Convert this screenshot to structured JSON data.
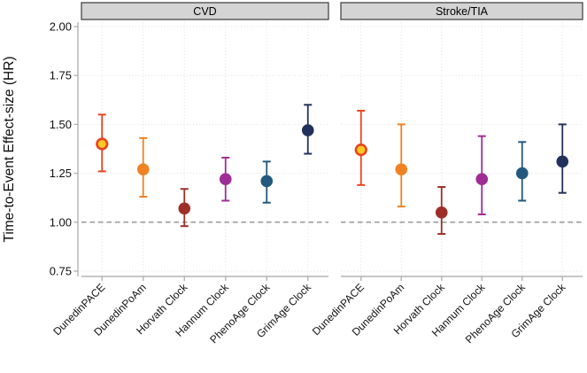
{
  "figure_title": "",
  "chart_data": {
    "type": "scatter",
    "subtype": "forest-plot-point-range",
    "ylabel": "Time-to-Event Effect-size (HR)",
    "xlabel": "",
    "ylim": [
      0.75,
      2.05
    ],
    "yticks": [
      2.0,
      1.75,
      1.5,
      1.25,
      1.0,
      0.75
    ],
    "ytick_labels": [
      "2.00",
      "1.75",
      "1.50",
      "1.25",
      "1.00",
      "0.75"
    ],
    "reference_line_y": 1.0,
    "grid": "dotted-both-axes",
    "legend_position": "none",
    "categories": [
      "DunedinPACE",
      "DunedinPoAm",
      "Horvath Clock",
      "Hannum Clock",
      "PhenoAge Clock",
      "GrimAge Clock"
    ],
    "panels": [
      {
        "label": "CVD",
        "series": [
          {
            "clock": "DunedinPACE",
            "hr": 1.4,
            "ci_low": 1.26,
            "ci_high": 1.55
          },
          {
            "clock": "DunedinPoAm",
            "hr": 1.27,
            "ci_low": 1.13,
            "ci_high": 1.43
          },
          {
            "clock": "Horvath Clock",
            "hr": 1.07,
            "ci_low": 0.98,
            "ci_high": 1.17
          },
          {
            "clock": "Hannum Clock",
            "hr": 1.22,
            "ci_low": 1.11,
            "ci_high": 1.33
          },
          {
            "clock": "PhenoAge Clock",
            "hr": 1.21,
            "ci_low": 1.1,
            "ci_high": 1.31
          },
          {
            "clock": "GrimAge Clock",
            "hr": 1.47,
            "ci_low": 1.35,
            "ci_high": 1.6
          }
        ]
      },
      {
        "label": "Stroke/TIA",
        "series": [
          {
            "clock": "DunedinPACE",
            "hr": 1.37,
            "ci_low": 1.19,
            "ci_high": 1.57
          },
          {
            "clock": "DunedinPoAm",
            "hr": 1.27,
            "ci_low": 1.08,
            "ci_high": 1.5
          },
          {
            "clock": "Horvath Clock",
            "hr": 1.05,
            "ci_low": 0.94,
            "ci_high": 1.18
          },
          {
            "clock": "Hannum Clock",
            "hr": 1.22,
            "ci_low": 1.04,
            "ci_high": 1.44
          },
          {
            "clock": "PhenoAge Clock",
            "hr": 1.25,
            "ci_low": 1.11,
            "ci_high": 1.41
          },
          {
            "clock": "GrimAge Clock",
            "hr": 1.31,
            "ci_low": 1.15,
            "ci_high": 1.5
          }
        ]
      }
    ],
    "colors": {
      "DunedinPACE": {
        "bar": "#e8441f",
        "fill": "#ffc823",
        "stroke": "#e8441f"
      },
      "DunedinPoAm": {
        "bar": "#f08222",
        "fill": "#f08222",
        "stroke": "#f08222"
      },
      "Horvath Clock": {
        "bar": "#9e2f28",
        "fill": "#9e2f28",
        "stroke": "#9e2f28"
      },
      "Hannum Clock": {
        "bar": "#a02c96",
        "fill": "#a02c96",
        "stroke": "#a02c96"
      },
      "PhenoAge Clock": {
        "bar": "#23597e",
        "fill": "#23597e",
        "stroke": "#23597e"
      },
      "GrimAge Clock": {
        "bar": "#22315c",
        "fill": "#22315c",
        "stroke": "#22315c"
      }
    },
    "style_colors": {
      "strip_fill": "#d4d4d4",
      "strip_border": "#3a3a3a",
      "grid_dotted": "#dedede",
      "reference_dashed": "#8f8f8f",
      "axis_line": "#b3b3b3",
      "text": "#111111"
    }
  }
}
